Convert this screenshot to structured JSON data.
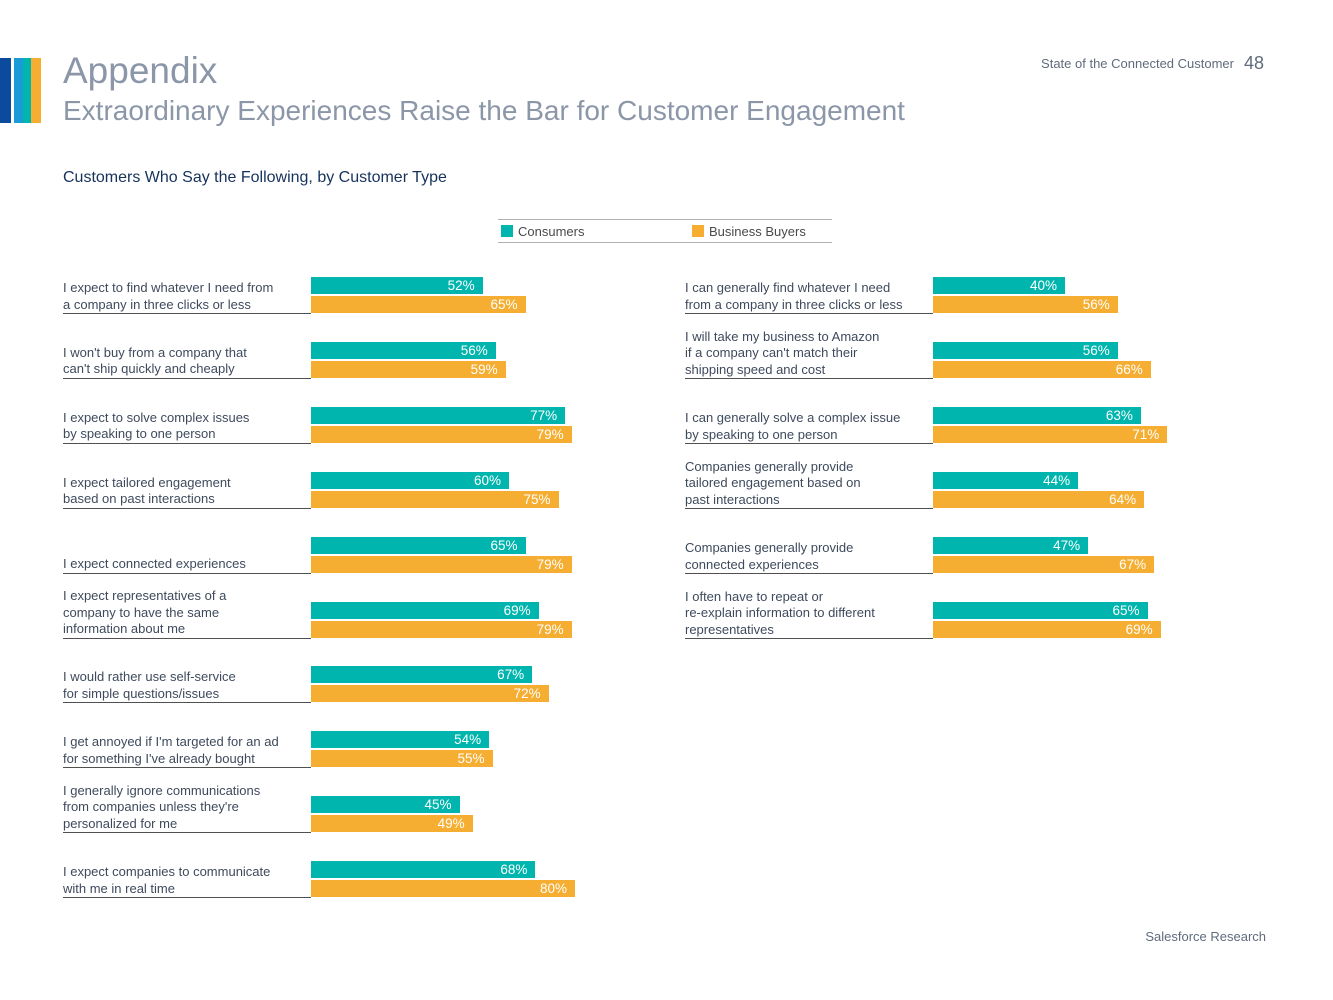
{
  "header": {
    "title": "Appendix",
    "subtitle": "Extraordinary Experiences Raise the Bar for Customer Engagement",
    "report_name": "State of the Connected Customer",
    "page_number": "48"
  },
  "footer": {
    "source": "Salesforce Research"
  },
  "colors": {
    "consumers": "#00b5ad",
    "business_buyers": "#f5ae31",
    "stripes": [
      "#0b4a9c",
      "#1a9ad6",
      "#00b5ad",
      "#f5ae31"
    ]
  },
  "chart_data": {
    "type": "bar",
    "orientation": "horizontal",
    "title": "Customers Who Say the Following, by Customer Type",
    "xlim": [
      0,
      100
    ],
    "unit": "%",
    "legend": [
      "Consumers",
      "Business Buyers"
    ],
    "panels": [
      {
        "id": "left",
        "rows": [
          {
            "lines": [
              "I expect to find whatever I need from",
              "a company in three clicks or less"
            ],
            "consumers": 52,
            "business_buyers": 65,
            "consumers_label": "52%",
            "business_buyers_label": "65%"
          },
          {
            "lines": [
              "I won't buy from a company that",
              "can't ship quickly and cheaply"
            ],
            "consumers": 56,
            "business_buyers": 59,
            "consumers_label": "56%",
            "business_buyers_label": "59%"
          },
          {
            "lines": [
              "I expect to solve complex issues",
              "by speaking to one person"
            ],
            "consumers": 77,
            "business_buyers": 79,
            "consumers_label": "77%",
            "business_buyers_label": "79%"
          },
          {
            "lines": [
              "I expect tailored engagement",
              "based on past interactions"
            ],
            "consumers": 60,
            "business_buyers": 75,
            "consumers_label": "60%",
            "business_buyers_label": "75%"
          },
          {
            "lines": [
              "I expect connected experiences"
            ],
            "consumers": 65,
            "business_buyers": 79,
            "consumers_label": "65%",
            "business_buyers_label": "79%"
          },
          {
            "lines": [
              "I expect representatives of a",
              "company to have the same",
              "information about me"
            ],
            "consumers": 69,
            "business_buyers": 79,
            "consumers_label": "69%",
            "business_buyers_label": "79%"
          },
          {
            "lines": [
              "I would rather use self-service",
              "for simple questions/issues"
            ],
            "consumers": 67,
            "business_buyers": 72,
            "consumers_label": "67%",
            "business_buyers_label": "72%"
          },
          {
            "lines": [
              "I get annoyed if I'm targeted for an ad",
              "for something I've already bought"
            ],
            "consumers": 54,
            "business_buyers": 55,
            "consumers_label": "54%",
            "business_buyers_label": "55%"
          },
          {
            "lines": [
              "I generally ignore communications",
              "from companies unless they're",
              "personalized for me"
            ],
            "consumers": 45,
            "business_buyers": 49,
            "consumers_label": "45%",
            "business_buyers_label": "49%"
          },
          {
            "lines": [
              "I expect companies to communicate",
              "with me in real time"
            ],
            "consumers": 68,
            "business_buyers": 80,
            "consumers_label": "68%",
            "business_buyers_label": "80%"
          }
        ]
      },
      {
        "id": "right",
        "rows": [
          {
            "lines": [
              "I can generally find whatever I need",
              "from a company in three clicks or less"
            ],
            "consumers": 40,
            "business_buyers": 56,
            "consumers_label": "40%",
            "business_buyers_label": "56%"
          },
          {
            "lines": [
              "I will take my business to Amazon",
              "if a company can't match their",
              "shipping speed and cost"
            ],
            "consumers": 56,
            "business_buyers": 66,
            "consumers_label": "56%",
            "business_buyers_label": "66%"
          },
          {
            "lines": [
              "I can generally solve a complex issue",
              "by speaking to one person"
            ],
            "consumers": 63,
            "business_buyers": 71,
            "consumers_label": "63%",
            "business_buyers_label": "71%"
          },
          {
            "lines": [
              "Companies generally provide",
              "tailored engagement based on",
              "past interactions"
            ],
            "consumers": 44,
            "business_buyers": 64,
            "consumers_label": "44%",
            "business_buyers_label": "64%"
          },
          {
            "lines": [
              "Companies generally provide",
              "connected experiences"
            ],
            "consumers": 47,
            "business_buyers": 67,
            "consumers_label": "47%",
            "business_buyers_label": "67%"
          },
          {
            "lines": [
              "I often have to repeat or",
              "re-explain information to different",
              "representatives"
            ],
            "consumers": 65,
            "business_buyers": 69,
            "consumers_label": "65%",
            "business_buyers_label": "69%"
          }
        ]
      }
    ]
  }
}
